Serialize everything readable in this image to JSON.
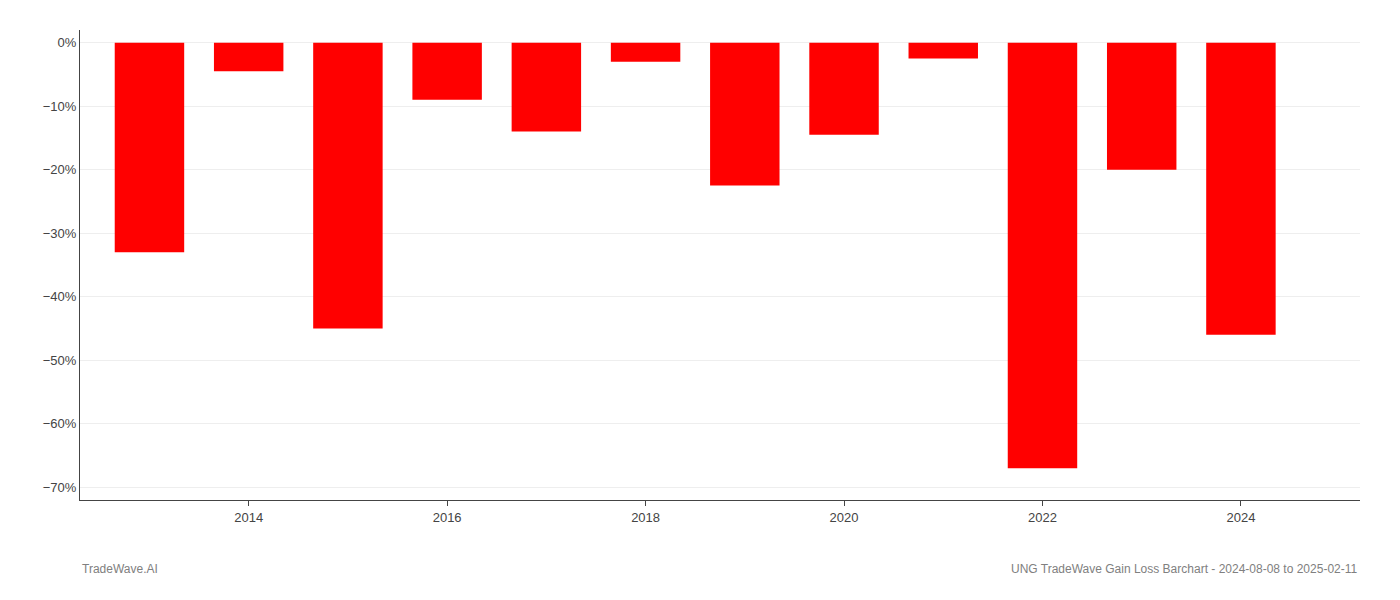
{
  "chart_data": {
    "type": "bar",
    "x": [
      2013,
      2014,
      2015,
      2016,
      2017,
      2018,
      2019,
      2020,
      2021,
      2022,
      2023,
      2024
    ],
    "values": [
      -33.0,
      -4.5,
      -45.0,
      -9.0,
      -14.0,
      -3.0,
      -22.5,
      -14.5,
      -2.5,
      -67.0,
      -20.0,
      -46.0
    ],
    "color": "#ff0000",
    "xlim": [
      2012.3,
      2025.2
    ],
    "xticks": [
      2014,
      2016,
      2018,
      2020,
      2022,
      2024
    ],
    "ylim": [
      -72,
      2
    ],
    "yticks": [
      {
        "value": 0,
        "label": "0%"
      },
      {
        "value": -10,
        "label": "−10%"
      },
      {
        "value": -20,
        "label": "−20%"
      },
      {
        "value": -30,
        "label": "−30%"
      },
      {
        "value": -40,
        "label": "−40%"
      },
      {
        "value": -50,
        "label": "−50%"
      },
      {
        "value": -60,
        "label": "−60%"
      },
      {
        "value": -70,
        "label": "−70%"
      }
    ],
    "grid": true,
    "annotations": [
      "TradeWave.AI",
      "UNG TradeWave Gain Loss Barchart - 2024-08-08 to 2025-02-11"
    ]
  }
}
